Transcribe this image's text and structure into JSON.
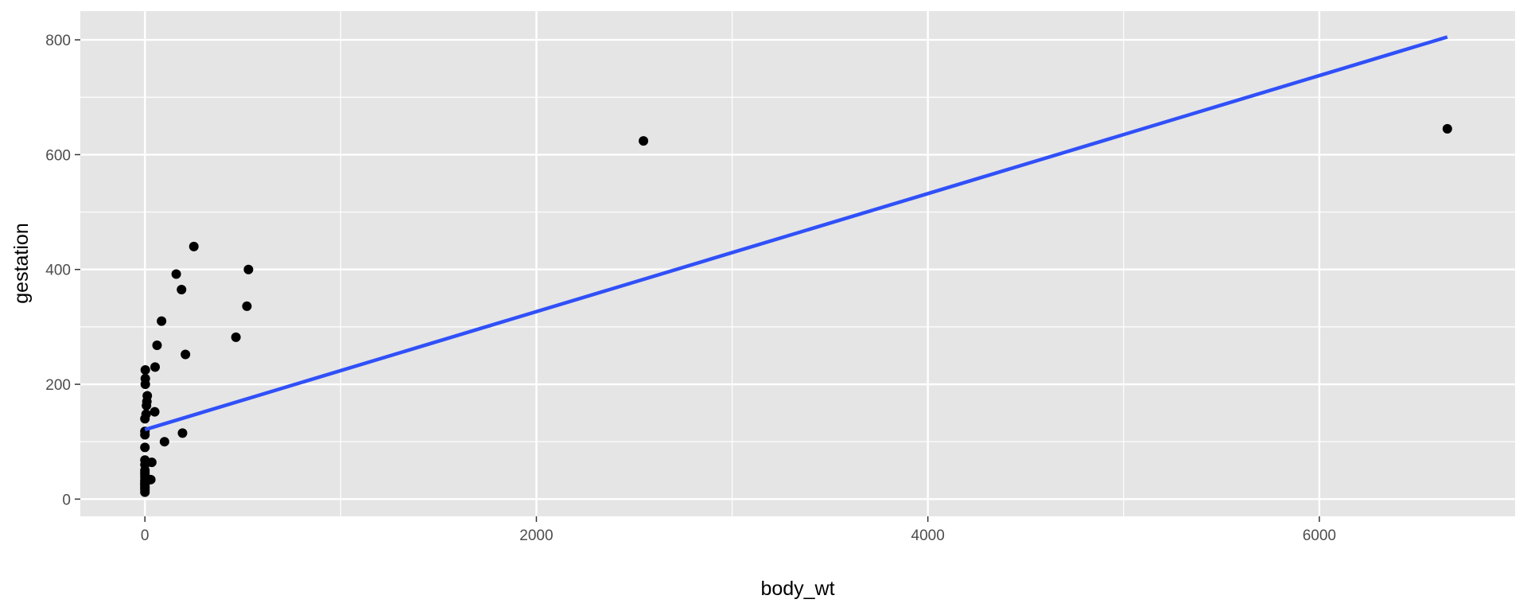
{
  "chart_data": {
    "type": "scatter",
    "title": "",
    "xlabel": "body_wt",
    "ylabel": "gestation",
    "xlim": [
      -330,
      7000
    ],
    "ylim": [
      -30,
      850
    ],
    "x_ticks": [
      0,
      2000,
      4000,
      6000
    ],
    "x_tick_labels": [
      "0",
      "2000",
      "4000",
      "6000"
    ],
    "x_minor_ticks": [
      1000,
      3000,
      5000
    ],
    "y_ticks": [
      0,
      200,
      400,
      600,
      800
    ],
    "y_tick_labels": [
      "0",
      "200",
      "400",
      "600",
      "800"
    ],
    "y_minor_ticks": [
      100,
      300,
      500,
      700
    ],
    "grid": true,
    "colors": {
      "panel": "#e5e5e5",
      "grid": "#ffffff",
      "points": "#000000",
      "line": "#3050f8",
      "ticks": "#333333"
    },
    "points": [
      {
        "x": 0,
        "y": 12
      },
      {
        "x": 0,
        "y": 16
      },
      {
        "x": 0,
        "y": 19
      },
      {
        "x": 0,
        "y": 21
      },
      {
        "x": 0,
        "y": 24
      },
      {
        "x": 0,
        "y": 26
      },
      {
        "x": 0,
        "y": 28
      },
      {
        "x": 0,
        "y": 31
      },
      {
        "x": 0,
        "y": 33
      },
      {
        "x": 0,
        "y": 38
      },
      {
        "x": 0,
        "y": 42
      },
      {
        "x": 0,
        "y": 46
      },
      {
        "x": 0,
        "y": 50
      },
      {
        "x": 0,
        "y": 60
      },
      {
        "x": 0,
        "y": 68
      },
      {
        "x": 0,
        "y": 90
      },
      {
        "x": 0,
        "y": 112
      },
      {
        "x": 0,
        "y": 118
      },
      {
        "x": 0,
        "y": 140
      },
      {
        "x": 2,
        "y": 200
      },
      {
        "x": 2,
        "y": 210
      },
      {
        "x": 2,
        "y": 225
      },
      {
        "x": 6,
        "y": 148
      },
      {
        "x": 8,
        "y": 163
      },
      {
        "x": 10,
        "y": 170
      },
      {
        "x": 12,
        "y": 180
      },
      {
        "x": 30,
        "y": 34
      },
      {
        "x": 35,
        "y": 64
      },
      {
        "x": 50,
        "y": 152
      },
      {
        "x": 52,
        "y": 230
      },
      {
        "x": 62,
        "y": 268
      },
      {
        "x": 85,
        "y": 310
      },
      {
        "x": 100,
        "y": 100
      },
      {
        "x": 160,
        "y": 392
      },
      {
        "x": 187,
        "y": 365
      },
      {
        "x": 192,
        "y": 115
      },
      {
        "x": 207,
        "y": 252
      },
      {
        "x": 250,
        "y": 440
      },
      {
        "x": 465,
        "y": 282
      },
      {
        "x": 521,
        "y": 336
      },
      {
        "x": 529,
        "y": 400
      },
      {
        "x": 2547,
        "y": 624
      },
      {
        "x": 6654,
        "y": 645
      }
    ],
    "fit_line": {
      "x": [
        0,
        6654
      ],
      "y": [
        121,
        805
      ]
    }
  }
}
